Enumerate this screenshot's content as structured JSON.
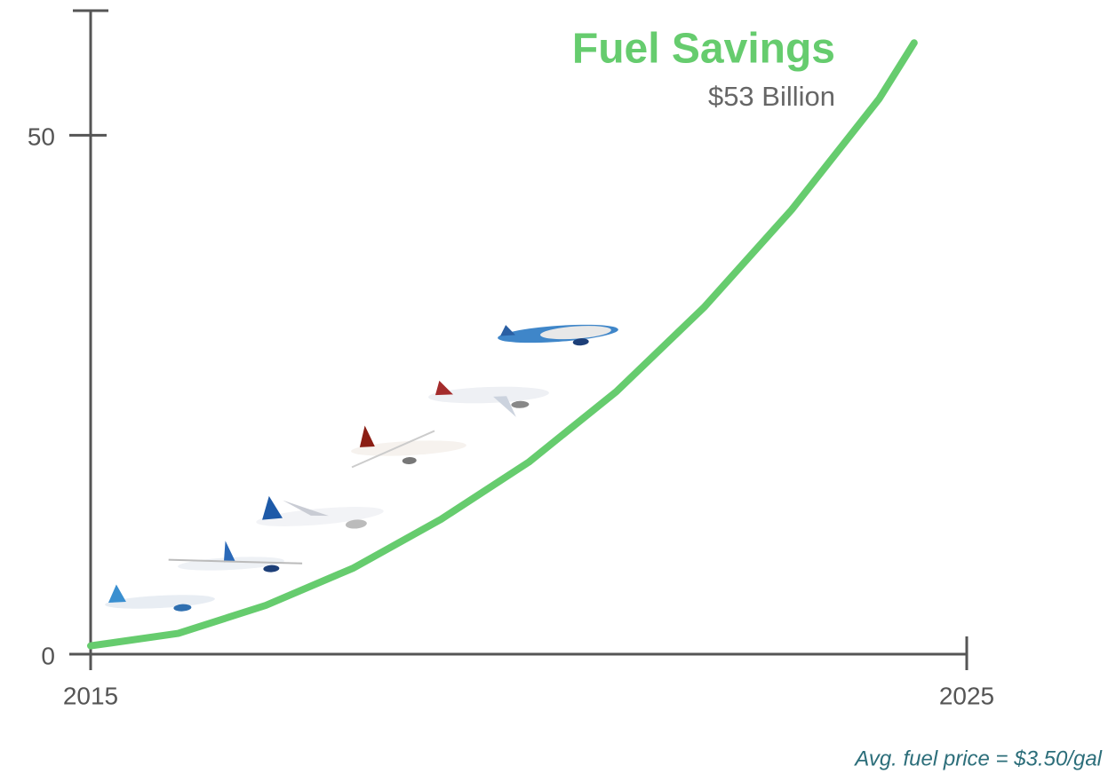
{
  "chart_data": {
    "type": "line",
    "title": "Fuel Savings",
    "subtitle": "$53 Billion",
    "annotation": "Avg. fuel price = $3.50/gal",
    "x": [
      2015,
      2016,
      2017,
      2018,
      2019,
      2020,
      2021,
      2022,
      2023,
      2024,
      2024.4
    ],
    "values": [
      0.8,
      2.0,
      4.7,
      8.3,
      13.0,
      18.5,
      25.3,
      33.4,
      42.8,
      53.5,
      58.9
    ],
    "color": "#66cc6e",
    "xlim": [
      2015,
      2025
    ],
    "xticks": [
      2015,
      2025
    ],
    "ylim": [
      0,
      62
    ],
    "yticks": [
      0,
      50
    ],
    "grid": false
  }
}
